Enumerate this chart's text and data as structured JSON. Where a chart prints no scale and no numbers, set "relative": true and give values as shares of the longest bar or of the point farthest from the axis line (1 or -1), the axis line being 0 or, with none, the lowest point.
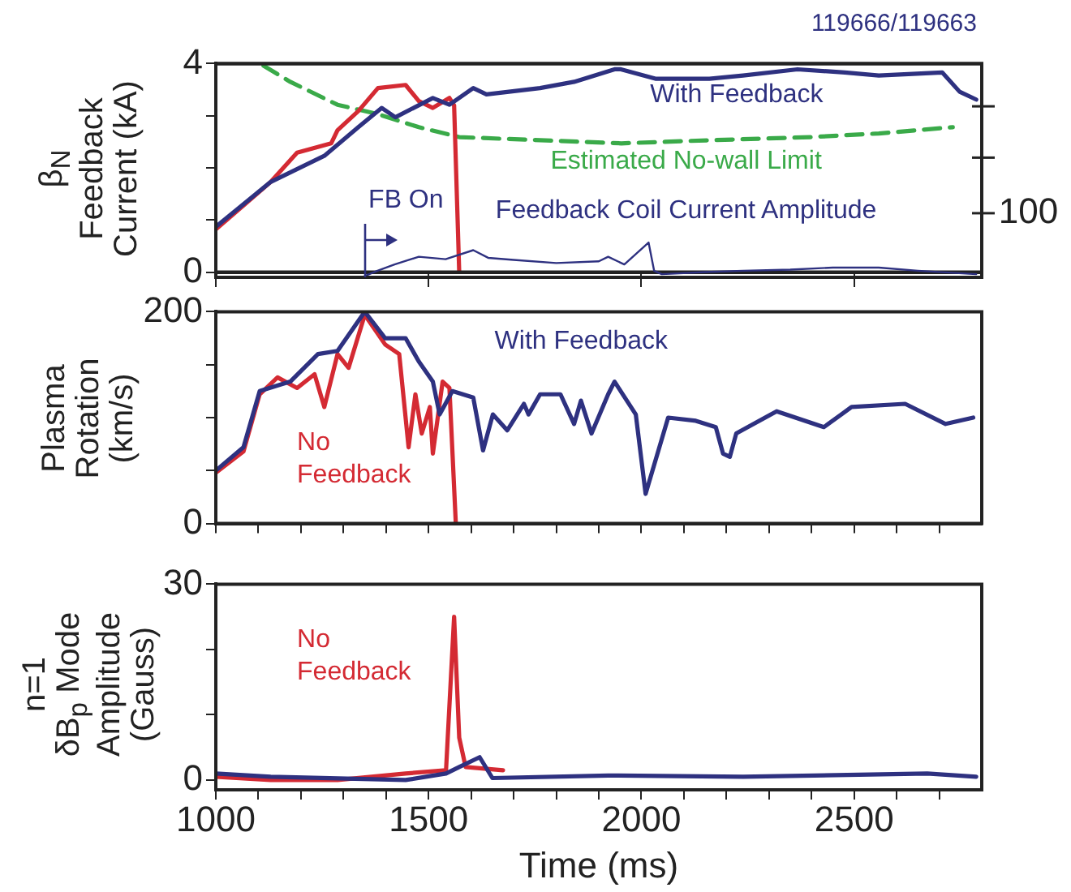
{
  "chart_data": [
    {
      "type": "line",
      "title": "119666/119663",
      "ylabel": "β$_{N}$\nFeedback\nCurrent (kA)",
      "marker": "none",
      "tick_labels": "y",
      "xlim": [
        1000,
        2800
      ],
      "xticks": [
        {
          "value": 1000,
          "label": null
        },
        {
          "value": 1500,
          "label": null
        },
        {
          "value": 2000,
          "label": null
        },
        {
          "value": 2500,
          "label": null
        }
      ],
      "ylim": [
        0,
        4
      ],
      "yticks": [
        0,
        {
          "value": 1,
          "label": null
        },
        {
          "value": 2,
          "label": null
        },
        {
          "value": 3,
          "label": null
        },
        4
      ],
      "series": [
        {
          "name": "With Feedback",
          "color": "#2e3180",
          "x": [
            1000,
            1129,
            1255,
            1335,
            1390,
            1422,
            1510,
            1549,
            1605,
            1636,
            1762,
            1842,
            1937,
            1952,
            2033,
            2160,
            2239,
            2367,
            2478,
            2558,
            2707,
            2748,
            2787
          ],
          "values": [
            0.87,
            1.73,
            2.23,
            2.78,
            3.15,
            2.97,
            3.34,
            3.21,
            3.53,
            3.41,
            3.53,
            3.65,
            3.89,
            3.89,
            3.71,
            3.71,
            3.77,
            3.89,
            3.83,
            3.77,
            3.83,
            3.46,
            3.31
          ]
        },
        {
          "color": "#d42a33",
          "x": [
            1000,
            1129,
            1191,
            1271,
            1286,
            1335,
            1381,
            1446,
            1477,
            1510,
            1549,
            1560,
            1572
          ],
          "values": [
            0.82,
            1.73,
            2.29,
            2.47,
            2.72,
            3.09,
            3.53,
            3.59,
            3.28,
            3.15,
            3.34,
            3.2,
            0
          ]
        },
        {
          "name": "Estimated No-wall Limit",
          "color": "#3aaa49",
          "line_style": "dashed",
          "x": [
            1112,
            1175,
            1286,
            1381,
            1477,
            1572,
            1762,
            1953,
            2160,
            2398,
            2558,
            2732
          ],
          "values": [
            3.96,
            3.65,
            3.21,
            3.03,
            2.78,
            2.59,
            2.53,
            2.47,
            2.53,
            2.59,
            2.66,
            2.78
          ]
        }
      ]
    },
    {
      "type": "line",
      "relative": true,
      "marker": "none",
      "tick_labels": false,
      "xlim": [
        1000,
        2800
      ],
      "xticks": [
        {
          "value": 1000,
          "label": null
        },
        {
          "value": 1500,
          "label": null
        },
        {
          "value": 2000,
          "label": null
        },
        {
          "value": 2500,
          "label": null
        }
      ],
      "annotations": [
        "FB On",
        "100"
      ],
      "series": [
        {
          "name": "Feedback Coil Current Amplitude",
          "color": "#2e3180",
          "x": [
            1350,
            1380,
            1420,
            1477,
            1540,
            1605,
            1640,
            1700,
            1800,
            1900,
            1922,
            1960,
            2017,
            2030,
            2048,
            2150,
            2239,
            2350,
            2450,
            2558,
            2650,
            2787
          ],
          "values": [
            0.04,
            0.19,
            0.37,
            0.59,
            0.52,
            0.78,
            0.56,
            0.5,
            0.41,
            0.46,
            0.59,
            0.37,
            1,
            0.19,
            0.09,
            0.15,
            0.19,
            0.22,
            0.28,
            0.28,
            0.19,
            0.09
          ]
        }
      ]
    },
    {
      "type": "line",
      "ylabel": "Plasma\nRotation\n(km/s)",
      "marker": "none",
      "tick_labels": "y",
      "xlim": [
        1000,
        2800
      ],
      "xticks": [
        {
          "value": 1000,
          "label": null
        },
        {
          "value": 1100,
          "label": null
        },
        {
          "value": 1200,
          "label": null
        },
        {
          "value": 1300,
          "label": null
        },
        {
          "value": 1400,
          "label": null
        },
        {
          "value": 1500,
          "label": null
        },
        {
          "value": 1600,
          "label": null
        },
        {
          "value": 1700,
          "label": null
        },
        {
          "value": 1800,
          "label": null
        },
        {
          "value": 1900,
          "label": null
        },
        {
          "value": 2000,
          "label": null
        },
        {
          "value": 2100,
          "label": null
        },
        {
          "value": 2200,
          "label": null
        },
        {
          "value": 2300,
          "label": null
        },
        {
          "value": 2400,
          "label": null
        },
        {
          "value": 2500,
          "label": null
        },
        {
          "value": 2600,
          "label": null
        },
        {
          "value": 2700,
          "label": null
        }
      ],
      "ylim": [
        0,
        200
      ],
      "yticks": [
        0,
        {
          "value": 50,
          "label": null
        },
        {
          "value": 100,
          "label": null
        },
        {
          "value": 150,
          "label": null
        },
        200
      ],
      "series": [
        {
          "name": "With Feedback",
          "color": "#2e3180",
          "x": [
            1000,
            1065,
            1103,
            1175,
            1240,
            1286,
            1350,
            1398,
            1446,
            1477,
            1510,
            1526,
            1556,
            1605,
            1628,
            1651,
            1685,
            1724,
            1735,
            1762,
            1810,
            1842,
            1858,
            1883,
            1922,
            1937,
            1987,
            2010,
            2063,
            2128,
            2175,
            2192,
            2208,
            2223,
            2318,
            2429,
            2494,
            2620,
            2715,
            2780
          ],
          "values": [
            50,
            72,
            125,
            134,
            160,
            163,
            200,
            175,
            175,
            153,
            134,
            103,
            125,
            119,
            69,
            103,
            88,
            113,
            103,
            122,
            122,
            94,
            116,
            85,
            122,
            134,
            103,
            28,
            100,
            97,
            91,
            66,
            63,
            85,
            106,
            91,
            110,
            113,
            94,
            100
          ]
        },
        {
          "name": "No Feedback",
          "color": "#d42a33",
          "x": [
            1000,
            1065,
            1103,
            1145,
            1191,
            1232,
            1255,
            1286,
            1312,
            1350,
            1398,
            1431,
            1453,
            1469,
            1484,
            1503,
            1510,
            1533,
            1549,
            1564
          ],
          "values": [
            48,
            68,
            122,
            138,
            128,
            141,
            110,
            160,
            147,
            197,
            169,
            160,
            72,
            122,
            85,
            110,
            66,
            134,
            128,
            0
          ]
        }
      ]
    },
    {
      "type": "line",
      "xlabel": "Time (ms)",
      "ylabel": "n=1\nδB$_{p}$ Mode\nAmplitude\n(Gauss)",
      "marker": "none",
      "xlim": [
        1000,
        2800
      ],
      "xticks": [
        1000,
        {
          "value": 1100,
          "label": null
        },
        {
          "value": 1200,
          "label": null
        },
        {
          "value": 1300,
          "label": null
        },
        {
          "value": 1400,
          "label": null
        },
        1500,
        {
          "value": 1600,
          "label": null
        },
        {
          "value": 1700,
          "label": null
        },
        {
          "value": 1800,
          "label": null
        },
        {
          "value": 1900,
          "label": null
        },
        2000,
        {
          "value": 2100,
          "label": null
        },
        {
          "value": 2200,
          "label": null
        },
        {
          "value": 2300,
          "label": null
        },
        {
          "value": 2400,
          "label": null
        },
        2500,
        {
          "value": 2600,
          "label": null
        },
        {
          "value": 2700,
          "label": null
        }
      ],
      "ylim": [
        -1.5,
        30
      ],
      "yticks": [
        0,
        {
          "value": 10,
          "label": null
        },
        {
          "value": 20,
          "label": null
        },
        30
      ],
      "series": [
        {
          "color": "#2e3180",
          "x": [
            1000,
            1129,
            1446,
            1541,
            1572,
            1620,
            1650,
            1922,
            2239,
            2672,
            2787
          ],
          "values": [
            1,
            0.5,
            0,
            1,
            2,
            3.5,
            0.3,
            0.7,
            0.5,
            1,
            0.5
          ]
        },
        {
          "name": "No Feedback",
          "color": "#d42a33",
          "x": [
            1000,
            1129,
            1286,
            1446,
            1541,
            1560,
            1572,
            1587,
            1675
          ],
          "values": [
            0.5,
            0,
            0,
            1,
            1.5,
            25,
            6.5,
            2,
            1.5
          ]
        }
      ]
    }
  ]
}
